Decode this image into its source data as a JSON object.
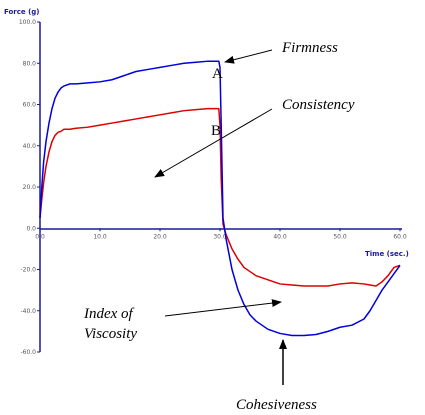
{
  "chart_data": {
    "type": "line",
    "title": "",
    "xlabel": "Time (sec.)",
    "ylabel": "Force (g)",
    "xlim": [
      0,
      60
    ],
    "ylim": [
      -60,
      100
    ],
    "x_ticks": [
      "0.0",
      "10.0",
      "20.0",
      "30.0",
      "40.0",
      "50.0",
      "60.0"
    ],
    "y_ticks": [
      "100.0",
      "80.0",
      "60.0",
      "40.0",
      "20.0",
      "0.0",
      "-20.0",
      "-40.0",
      "-60.0"
    ],
    "grid": false,
    "colors": {
      "series_a": "#0000dd",
      "series_b": "#dd0000",
      "axis": "#1a1a99"
    },
    "series": [
      {
        "x": [
          0,
          0.3,
          0.6,
          1.0,
          1.5,
          2.0,
          2.5,
          3.0,
          3.5,
          4.0,
          5.0,
          6.0,
          8.0,
          10.0,
          12.0,
          14.0,
          16.0,
          18.0,
          20.0,
          22.0,
          24.0,
          26.0,
          28.0,
          29.5,
          29.8,
          30.0,
          30.2,
          30.5,
          31.0,
          32.0,
          33.0,
          34.0,
          35.0,
          36.0,
          37.0,
          38.0,
          40.0,
          42.0,
          44.0,
          46.0,
          48.0,
          50.0,
          52.0,
          54.0,
          55.0,
          56.0,
          57.0,
          58.0,
          59.0,
          60.0
        ],
        "y": [
          5,
          20,
          32,
          42,
          51,
          58,
          63,
          66,
          68,
          69,
          70,
          70,
          70.5,
          71,
          72,
          74,
          76,
          77,
          78,
          79,
          80,
          80.5,
          81,
          81,
          81,
          78,
          50,
          5,
          -5,
          -20,
          -30,
          -37,
          -42,
          -45,
          -47,
          -49,
          -51,
          -52,
          -52,
          -51.5,
          -50,
          -48,
          -47,
          -44,
          -40,
          -35,
          -30,
          -26,
          -22,
          -18
        ]
      },
      {
        "x": [
          0,
          0.3,
          0.6,
          1.0,
          1.5,
          2.0,
          2.5,
          3.0,
          3.5,
          4.0,
          5.0,
          6.0,
          8.0,
          10.0,
          12.0,
          14.0,
          16.0,
          18.0,
          20.0,
          22.0,
          24.0,
          26.0,
          28.0,
          29.5,
          29.8,
          30.0,
          30.2,
          30.5,
          31.0,
          32.0,
          33.0,
          34.0,
          35.0,
          36.0,
          38.0,
          40.0,
          42.0,
          44.0,
          46.0,
          48.0,
          50.0,
          52.0,
          54.0,
          55.0,
          56.0,
          57.0,
          58.0,
          59.0,
          60.0
        ],
        "y": [
          5,
          14,
          22,
          30,
          37,
          42,
          45,
          46.5,
          47,
          48,
          48,
          48.5,
          49,
          50,
          51,
          52,
          53,
          54,
          55,
          56,
          57,
          57.5,
          58,
          58,
          58,
          50,
          24,
          2,
          -3,
          -10,
          -15,
          -19,
          -21,
          -23,
          -25,
          -27,
          -27.5,
          -28,
          -28,
          -28,
          -27,
          -26.5,
          -27,
          -27.5,
          -28,
          -26,
          -23,
          -19,
          -18
        ]
      }
    ],
    "annotations": {
      "firmness": "Firmness",
      "consistency": "Consistency",
      "index_line1": "Index of",
      "index_line2": "Viscosity",
      "cohesiveness": "Cohesiveness",
      "point_a": "A",
      "point_b": "B"
    }
  }
}
